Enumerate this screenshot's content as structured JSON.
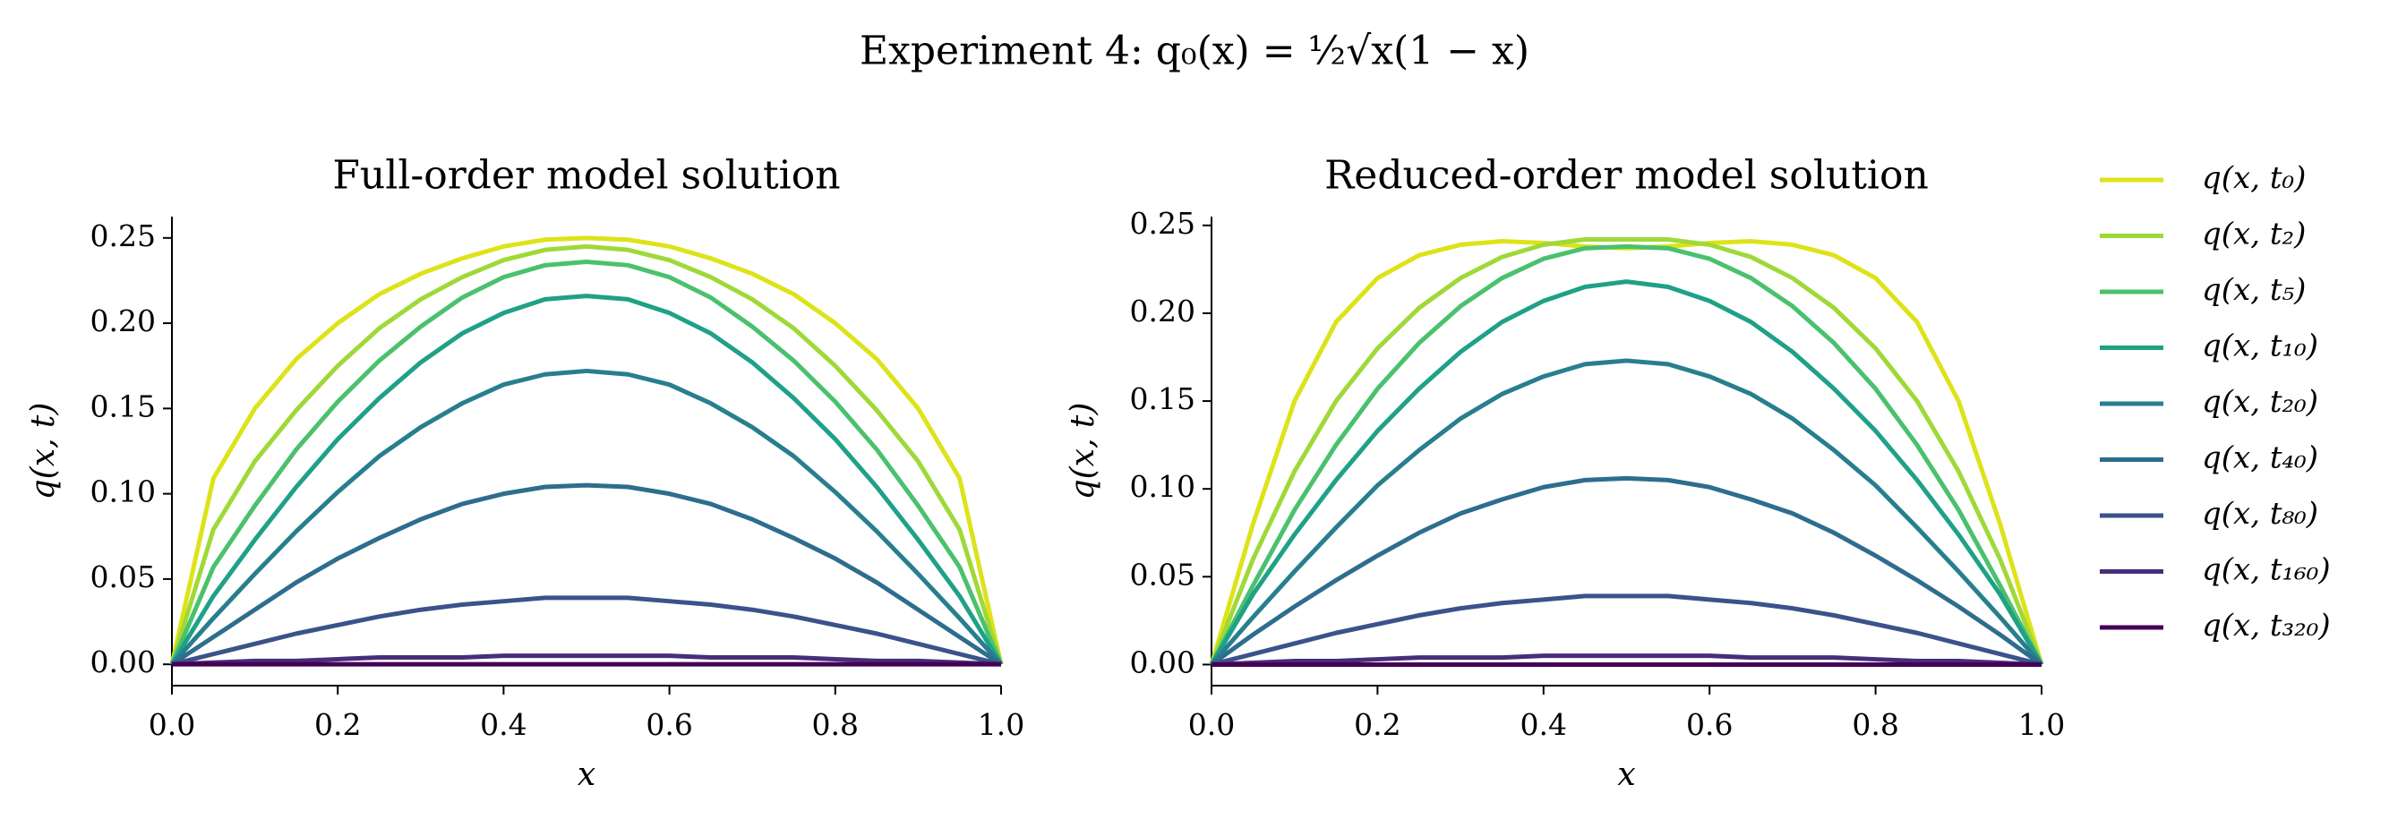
{
  "title": "Experiment 4: q₀(x) = ½√x(1 − x)",
  "chart_data": [
    {
      "type": "line",
      "title": "Full-order model solution",
      "xlabel": "x",
      "ylabel": "q(x, t)",
      "x": [
        0,
        0.05,
        0.1,
        0.15,
        0.2,
        0.25,
        0.3,
        0.35,
        0.4,
        0.45,
        0.5,
        0.55,
        0.6,
        0.65,
        0.7,
        0.75,
        0.8,
        0.85,
        0.9,
        0.95,
        1
      ],
      "xlim": [
        0,
        1
      ],
      "ylim": [
        -0.0125,
        0.2625
      ],
      "xticks": [
        {
          "value": 0,
          "label": "0.0"
        },
        {
          "value": 0.2,
          "label": "0.2"
        },
        {
          "value": 0.4,
          "label": "0.4"
        },
        {
          "value": 0.6,
          "label": "0.6"
        },
        {
          "value": 0.8,
          "label": "0.8"
        },
        {
          "value": 1,
          "label": "1.0"
        }
      ],
      "yticks": [
        {
          "value": 0,
          "label": "0.00"
        },
        {
          "value": 0.05,
          "label": "0.05"
        },
        {
          "value": 0.1,
          "label": "0.10"
        },
        {
          "value": 0.15,
          "label": "0.15"
        },
        {
          "value": 0.2,
          "label": "0.20"
        },
        {
          "value": 0.25,
          "label": "0.25"
        }
      ],
      "series": [
        {
          "color": "#dde318",
          "values": [
            0,
            0.109,
            0.15,
            0.179,
            0.2,
            0.217,
            0.229,
            0.238,
            0.245,
            0.249,
            0.25,
            0.249,
            0.245,
            0.238,
            0.229,
            0.217,
            0.2,
            0.179,
            0.15,
            0.109,
            0
          ]
        },
        {
          "color": "#9fd938",
          "values": [
            0,
            0.079,
            0.119,
            0.149,
            0.175,
            0.197,
            0.214,
            0.227,
            0.237,
            0.243,
            0.245,
            0.243,
            0.237,
            0.227,
            0.214,
            0.197,
            0.175,
            0.149,
            0.119,
            0.079,
            0
          ]
        },
        {
          "color": "#4ac16d",
          "values": [
            0,
            0.057,
            0.093,
            0.126,
            0.154,
            0.178,
            0.198,
            0.215,
            0.227,
            0.234,
            0.236,
            0.234,
            0.227,
            0.215,
            0.198,
            0.178,
            0.154,
            0.126,
            0.093,
            0.057,
            0
          ]
        },
        {
          "color": "#1fa187",
          "values": [
            0,
            0.04,
            0.073,
            0.104,
            0.132,
            0.156,
            0.177,
            0.194,
            0.206,
            0.214,
            0.216,
            0.214,
            0.206,
            0.194,
            0.177,
            0.156,
            0.132,
            0.104,
            0.073,
            0.04,
            0
          ]
        },
        {
          "color": "#277f8e",
          "values": [
            0,
            0.027,
            0.053,
            0.078,
            0.101,
            0.122,
            0.139,
            0.153,
            0.164,
            0.17,
            0.172,
            0.17,
            0.164,
            0.153,
            0.139,
            0.122,
            0.101,
            0.078,
            0.053,
            0.027,
            0
          ]
        },
        {
          "color": "#2e6d8e",
          "values": [
            0,
            0.016,
            0.032,
            0.048,
            0.062,
            0.074,
            0.085,
            0.094,
            0.1,
            0.104,
            0.105,
            0.104,
            0.1,
            0.094,
            0.085,
            0.074,
            0.062,
            0.048,
            0.032,
            0.016,
            0
          ]
        },
        {
          "color": "#3b528b",
          "values": [
            0,
            0.006,
            0.012,
            0.018,
            0.023,
            0.028,
            0.032,
            0.035,
            0.037,
            0.039,
            0.039,
            0.039,
            0.037,
            0.035,
            0.032,
            0.028,
            0.023,
            0.018,
            0.012,
            0.006,
            0
          ]
        },
        {
          "color": "#472d7b",
          "values": [
            0,
            0.001,
            0.002,
            0.002,
            0.003,
            0.004,
            0.004,
            0.004,
            0.005,
            0.005,
            0.005,
            0.005,
            0.005,
            0.004,
            0.004,
            0.004,
            0.003,
            0.002,
            0.002,
            0.001,
            0
          ]
        },
        {
          "color": "#440154",
          "values": [
            0,
            0,
            0,
            0,
            0,
            0,
            0,
            0,
            0,
            0,
            0,
            0,
            0,
            0,
            0,
            0,
            0,
            0,
            0,
            0,
            0
          ]
        }
      ]
    },
    {
      "type": "line",
      "title": "Reduced-order model solution",
      "xlabel": "x",
      "ylabel": "q(x, t)",
      "x": [
        0,
        0.05,
        0.1,
        0.15,
        0.2,
        0.25,
        0.3,
        0.35,
        0.4,
        0.45,
        0.5,
        0.55,
        0.6,
        0.65,
        0.7,
        0.75,
        0.8,
        0.85,
        0.9,
        0.95,
        1
      ],
      "xlim": [
        0,
        1
      ],
      "ylim": [
        -0.012,
        0.255
      ],
      "xticks": [
        {
          "value": 0,
          "label": "0.0"
        },
        {
          "value": 0.2,
          "label": "0.2"
        },
        {
          "value": 0.4,
          "label": "0.4"
        },
        {
          "value": 0.6,
          "label": "0.6"
        },
        {
          "value": 0.8,
          "label": "0.8"
        },
        {
          "value": 1,
          "label": "1.0"
        }
      ],
      "yticks": [
        {
          "value": 0,
          "label": "0.00"
        },
        {
          "value": 0.05,
          "label": "0.05"
        },
        {
          "value": 0.1,
          "label": "0.10"
        },
        {
          "value": 0.15,
          "label": "0.15"
        },
        {
          "value": 0.2,
          "label": "0.20"
        },
        {
          "value": 0.25,
          "label": "0.25"
        }
      ],
      "series": [
        {
          "name": "q(x, t₀)",
          "color": "#dde318",
          "values": [
            0,
            0.08,
            0.15,
            0.195,
            0.22,
            0.233,
            0.239,
            0.241,
            0.24,
            0.238,
            0.237,
            0.238,
            0.24,
            0.241,
            0.239,
            0.233,
            0.22,
            0.195,
            0.15,
            0.08,
            0
          ]
        },
        {
          "name": "q(x, t₂)",
          "color": "#9fd938",
          "values": [
            0,
            0.06,
            0.11,
            0.15,
            0.18,
            0.203,
            0.22,
            0.232,
            0.239,
            0.242,
            0.242,
            0.242,
            0.239,
            0.232,
            0.22,
            0.203,
            0.18,
            0.15,
            0.11,
            0.06,
            0
          ]
        },
        {
          "name": "q(x, t₅)",
          "color": "#4ac16d",
          "values": [
            0,
            0.045,
            0.088,
            0.125,
            0.157,
            0.183,
            0.204,
            0.22,
            0.231,
            0.237,
            0.238,
            0.237,
            0.231,
            0.22,
            0.204,
            0.183,
            0.157,
            0.125,
            0.088,
            0.045,
            0
          ]
        },
        {
          "name": "q(x, t₁₀)",
          "color": "#1fa187",
          "values": [
            0,
            0.04,
            0.074,
            0.105,
            0.133,
            0.157,
            0.178,
            0.195,
            0.207,
            0.215,
            0.218,
            0.215,
            0.207,
            0.195,
            0.178,
            0.157,
            0.133,
            0.105,
            0.074,
            0.04,
            0
          ]
        },
        {
          "name": "q(x, t₂₀)",
          "color": "#277f8e",
          "values": [
            0,
            0.027,
            0.053,
            0.078,
            0.102,
            0.122,
            0.14,
            0.154,
            0.164,
            0.171,
            0.173,
            0.171,
            0.164,
            0.154,
            0.14,
            0.122,
            0.102,
            0.078,
            0.053,
            0.027,
            0
          ]
        },
        {
          "name": "q(x, t₄₀)",
          "color": "#2e6d8e",
          "values": [
            0,
            0.017,
            0.033,
            0.048,
            0.062,
            0.075,
            0.086,
            0.094,
            0.101,
            0.105,
            0.106,
            0.105,
            0.101,
            0.094,
            0.086,
            0.075,
            0.062,
            0.048,
            0.033,
            0.017,
            0
          ]
        },
        {
          "name": "q(x, t₈₀)",
          "color": "#3b528b",
          "values": [
            0,
            0.006,
            0.012,
            0.018,
            0.023,
            0.028,
            0.032,
            0.035,
            0.037,
            0.039,
            0.039,
            0.039,
            0.037,
            0.035,
            0.032,
            0.028,
            0.023,
            0.018,
            0.012,
            0.006,
            0
          ]
        },
        {
          "name": "q(x, t₁₆₀)",
          "color": "#472d7b",
          "values": [
            0,
            0.001,
            0.002,
            0.002,
            0.003,
            0.004,
            0.004,
            0.004,
            0.005,
            0.005,
            0.005,
            0.005,
            0.005,
            0.004,
            0.004,
            0.004,
            0.003,
            0.002,
            0.002,
            0.001,
            0
          ]
        },
        {
          "name": "q(x, t₃₂₀)",
          "color": "#440154",
          "values": [
            0,
            0,
            0,
            0,
            0,
            0,
            0,
            0,
            0,
            0,
            0,
            0,
            0,
            0,
            0,
            0,
            0,
            0,
            0,
            0,
            0
          ]
        }
      ]
    }
  ]
}
